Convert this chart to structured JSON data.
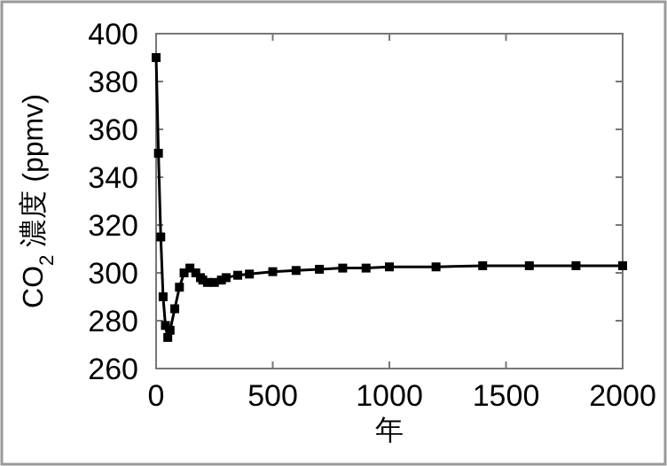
{
  "chart_data": {
    "type": "line",
    "xlabel": "年",
    "ylabel": "CO$_{2}$ 濃度 (ppmv)",
    "xlim": [
      0,
      2000
    ],
    "ylim": [
      260,
      400
    ],
    "xticks": [
      0,
      500,
      1000,
      1500,
      2000
    ],
    "yticks": [
      260,
      280,
      300,
      320,
      340,
      360,
      380,
      400
    ],
    "grid": false,
    "marker": "square",
    "line_style": "solid",
    "series": [
      {
        "color": "#000000",
        "x": [
          0,
          10,
          20,
          30,
          40,
          50,
          60,
          80,
          100,
          120,
          145,
          170,
          190,
          200,
          220,
          250,
          280,
          300,
          350,
          400,
          500,
          600,
          700,
          800,
          900,
          1000,
          1200,
          1400,
          1600,
          1800,
          2000
        ],
        "values": [
          390,
          350,
          315,
          290,
          278,
          273,
          276,
          285,
          294,
          300,
          302,
          300,
          298,
          297,
          296,
          296,
          297,
          298,
          299,
          299.5,
          300.5,
          301,
          301.5,
          302,
          302,
          302.5,
          302.5,
          303,
          303,
          303,
          303
        ]
      }
    ]
  }
}
